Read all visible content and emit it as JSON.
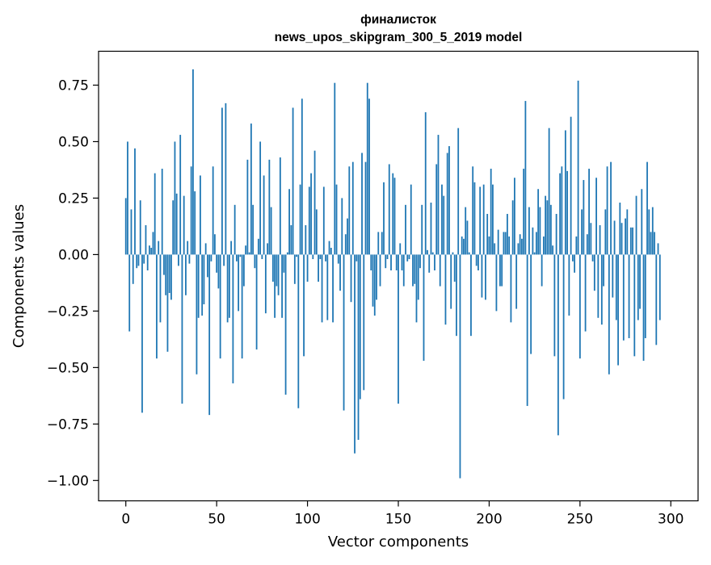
{
  "chart_data": {
    "type": "bar",
    "title_line1": "финалисток",
    "title_line2": "news_upos_skipgram_300_5_2019 model",
    "xlabel": "Vector components",
    "ylabel": "Components values",
    "xlim": [
      -15,
      315
    ],
    "ylim": [
      -1.09,
      0.9
    ],
    "xticks": [
      0,
      50,
      100,
      150,
      200,
      250,
      300
    ],
    "xtick_labels": [
      "0",
      "50",
      "100",
      "150",
      "200",
      "250",
      "300"
    ],
    "yticks": [
      0.75,
      0.5,
      0.25,
      0.0,
      -0.25,
      -0.5,
      -0.75,
      -1.0
    ],
    "ytick_labels": [
      "0.75",
      "0.50",
      "0.25",
      "0.00",
      "−0.25",
      "−0.50",
      "−0.75",
      "−1.00"
    ],
    "bar_color": "#1f77b4",
    "grid": false,
    "legend": "none",
    "x": "0..299",
    "values": [
      0.25,
      0.5,
      -0.34,
      0.2,
      -0.13,
      0.47,
      -0.06,
      -0.05,
      0.24,
      -0.7,
      -0.04,
      0.13,
      -0.07,
      0.04,
      0.03,
      0.1,
      0.36,
      -0.46,
      0.06,
      -0.3,
      0.38,
      -0.09,
      -0.18,
      -0.43,
      -0.17,
      -0.2,
      0.24,
      0.5,
      0.27,
      -0.05,
      0.53,
      -0.66,
      0.26,
      -0.18,
      0.06,
      -0.04,
      0.39,
      0.82,
      0.28,
      -0.53,
      -0.28,
      0.35,
      -0.27,
      -0.22,
      0.05,
      -0.1,
      -0.71,
      -0.03,
      0.39,
      0.09,
      -0.08,
      -0.15,
      -0.46,
      0.65,
      -0.05,
      0.67,
      -0.3,
      -0.28,
      0.06,
      -0.57,
      0.22,
      -0.03,
      -0.25,
      -0.01,
      -0.46,
      -0.14,
      0.04,
      0.42,
      0.01,
      0.58,
      0.22,
      -0.06,
      -0.42,
      0.07,
      0.5,
      -0.02,
      0.35,
      -0.26,
      0.05,
      0.42,
      0.21,
      -0.12,
      -0.28,
      -0.14,
      -0.18,
      0.43,
      -0.28,
      -0.08,
      -0.62,
      0.01,
      0.29,
      0.13,
      0.65,
      -0.13,
      -0.01,
      -0.68,
      0.31,
      0.69,
      -0.45,
      0.13,
      -0.12,
      0.3,
      0.36,
      -0.02,
      0.46,
      0.2,
      -0.12,
      -0.02,
      -0.3,
      0.3,
      -0.03,
      -0.29,
      0.06,
      0.03,
      -0.3,
      0.76,
      0.31,
      -0.04,
      -0.16,
      0.25,
      -0.69,
      0.09,
      0.16,
      0.39,
      -0.21,
      0.41,
      -0.88,
      -0.03,
      -0.82,
      -0.64,
      0.45,
      -0.6,
      0.41,
      0.76,
      0.69,
      -0.07,
      -0.23,
      -0.27,
      -0.2,
      0.1,
      -0.14,
      0.1,
      0.32,
      -0.06,
      -0.02,
      0.4,
      -0.07,
      0.36,
      0.34,
      -0.07,
      -0.66,
      0.05,
      -0.07,
      -0.14,
      0.22,
      -0.03,
      -0.02,
      0.31,
      -0.14,
      -0.13,
      -0.3,
      -0.2,
      -0.06,
      0.22,
      -0.47,
      0.63,
      0.02,
      -0.08,
      0.23,
      0.01,
      -0.07,
      0.4,
      0.53,
      -0.14,
      0.31,
      0.26,
      -0.31,
      0.45,
      0.48,
      -0.24,
      0.01,
      -0.12,
      -0.36,
      0.56,
      -0.99,
      0.08,
      0.07,
      0.21,
      0.15,
      0.01,
      -0.36,
      0.39,
      0.32,
      -0.05,
      -0.07,
      0.3,
      -0.19,
      0.31,
      -0.2,
      0.18,
      0.08,
      0.38,
      0.31,
      0.05,
      -0.25,
      0.11,
      -0.14,
      -0.14,
      0.1,
      0.1,
      0.18,
      0.08,
      -0.3,
      0.24,
      0.34,
      -0.24,
      0.05,
      0.09,
      0.07,
      0.38,
      0.68,
      -0.67,
      0.21,
      -0.44,
      0.12,
      0.01,
      0.1,
      0.29,
      0.21,
      -0.14,
      0.08,
      0.26,
      0.24,
      0.56,
      0.22,
      0.04,
      -0.45,
      0.18,
      -0.8,
      0.36,
      0.39,
      -0.64,
      0.55,
      0.37,
      -0.27,
      0.61,
      -0.03,
      -0.08,
      0.08,
      0.77,
      -0.46,
      0.2,
      0.33,
      -0.34,
      0.09,
      0.38,
      0.14,
      -0.03,
      -0.16,
      0.34,
      -0.28,
      0.13,
      -0.31,
      -0.14,
      0.2,
      0.39,
      -0.53,
      0.41,
      -0.19,
      0.15,
      -0.29,
      -0.49,
      0.23,
      0.14,
      -0.38,
      0.16,
      0.2,
      -0.37,
      0.12,
      0.12,
      -0.45,
      0.26,
      -0.29,
      -0.24,
      0.29,
      -0.47,
      -0.37,
      0.41,
      0.2,
      0.1,
      0.21,
      0.1,
      -0.4,
      0.05,
      -0.29
    ]
  }
}
